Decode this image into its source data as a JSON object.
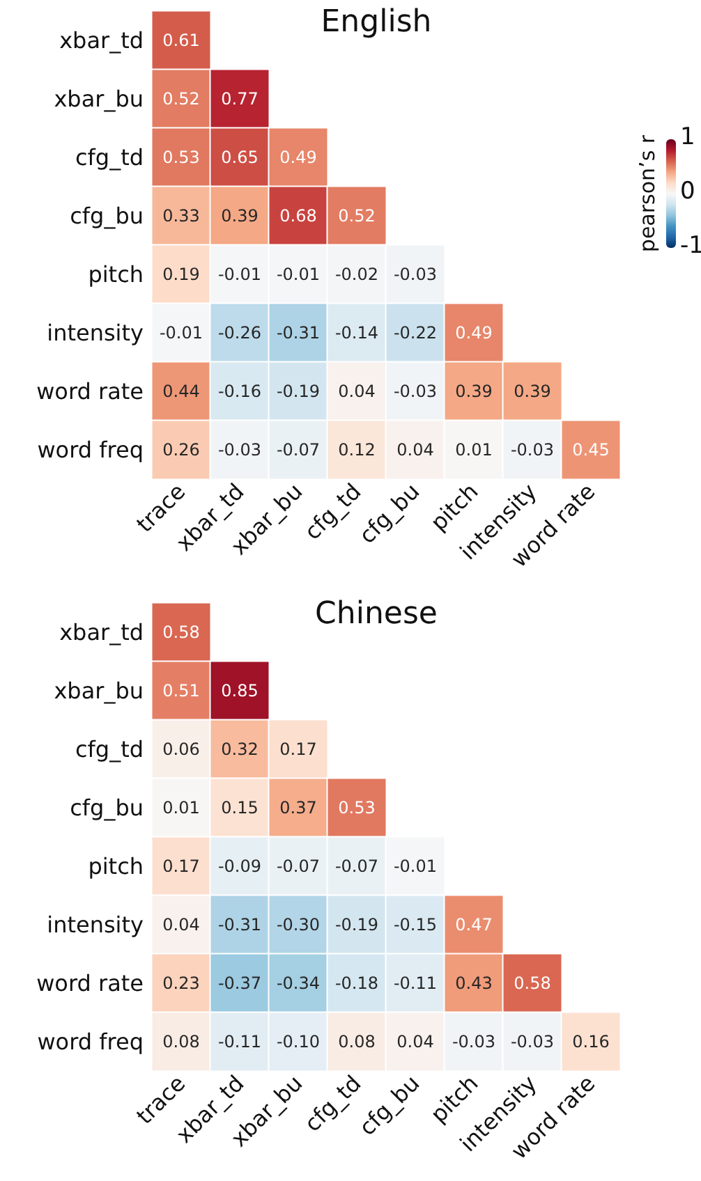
{
  "chart_data": [
    {
      "type": "heatmap",
      "title": "English",
      "categories": [
        "trace",
        "xbar_td",
        "xbar_bu",
        "cfg_td",
        "cfg_bu",
        "pitch",
        "intensity",
        "word rate"
      ],
      "y_categories": [
        "xbar_td",
        "xbar_bu",
        "cfg_td",
        "cfg_bu",
        "pitch",
        "intensity",
        "word rate",
        "word freq"
      ],
      "cells": [
        [
          0.61,
          null,
          null,
          null,
          null,
          null,
          null,
          null
        ],
        [
          0.52,
          0.77,
          null,
          null,
          null,
          null,
          null,
          null
        ],
        [
          0.53,
          0.65,
          0.49,
          null,
          null,
          null,
          null,
          null
        ],
        [
          0.33,
          0.39,
          0.68,
          0.52,
          null,
          null,
          null,
          null
        ],
        [
          0.19,
          -0.01,
          -0.01,
          -0.02,
          -0.03,
          null,
          null,
          null
        ],
        [
          -0.01,
          -0.26,
          -0.31,
          -0.14,
          -0.22,
          0.49,
          null,
          null
        ],
        [
          0.44,
          -0.16,
          -0.19,
          0.04,
          -0.03,
          0.39,
          0.39,
          null
        ],
        [
          0.26,
          -0.03,
          -0.07,
          0.12,
          0.04,
          0.01,
          -0.03,
          0.45
        ]
      ],
      "cell_labels": [
        [
          "0.61",
          null,
          null,
          null,
          null,
          null,
          null,
          null
        ],
        [
          "0.52",
          "0.77",
          null,
          null,
          null,
          null,
          null,
          null
        ],
        [
          "0.53",
          "0.65",
          "0.49",
          null,
          null,
          null,
          null,
          null
        ],
        [
          "0.33",
          "0.39",
          "0.68",
          "0.52",
          null,
          null,
          null,
          null
        ],
        [
          "0.19",
          "-0.01",
          "-0.01",
          "-0.02",
          "-0.03",
          null,
          null,
          null
        ],
        [
          "-0.01",
          "-0.26",
          "-0.31",
          "-0.14",
          "-0.22",
          "0.49",
          null,
          null
        ],
        [
          "0.44",
          "-0.16",
          "-0.19",
          "0.04",
          "-0.03",
          "0.39",
          "0.39",
          null
        ],
        [
          "0.26",
          "-0.03",
          "-0.07",
          "0.12",
          "0.04",
          "0.01",
          "-0.03",
          "0.45"
        ]
      ],
      "clabel": "pearson’s r",
      "clim": [
        -1,
        1
      ],
      "cticks": [
        -1,
        0,
        1
      ]
    },
    {
      "type": "heatmap",
      "title": "Chinese",
      "categories": [
        "trace",
        "xbar_td",
        "xbar_bu",
        "cfg_td",
        "cfg_bu",
        "pitch",
        "intensity",
        "word rate"
      ],
      "y_categories": [
        "xbar_td",
        "xbar_bu",
        "cfg_td",
        "cfg_bu",
        "pitch",
        "intensity",
        "word rate",
        "word freq"
      ],
      "cells": [
        [
          0.58,
          null,
          null,
          null,
          null,
          null,
          null,
          null
        ],
        [
          0.51,
          0.85,
          null,
          null,
          null,
          null,
          null,
          null
        ],
        [
          0.06,
          0.32,
          0.17,
          null,
          null,
          null,
          null,
          null
        ],
        [
          0.01,
          0.15,
          0.37,
          0.53,
          null,
          null,
          null,
          null
        ],
        [
          0.17,
          -0.09,
          -0.07,
          -0.07,
          -0.01,
          null,
          null,
          null
        ],
        [
          0.04,
          -0.31,
          -0.3,
          -0.19,
          -0.15,
          0.47,
          null,
          null
        ],
        [
          0.23,
          -0.37,
          -0.34,
          -0.18,
          -0.11,
          0.43,
          0.58,
          null
        ],
        [
          0.08,
          -0.11,
          -0.1,
          0.08,
          0.04,
          -0.03,
          -0.03,
          0.16
        ]
      ],
      "cell_labels": [
        [
          "0.58",
          null,
          null,
          null,
          null,
          null,
          null,
          null
        ],
        [
          "0.51",
          "0.85",
          null,
          null,
          null,
          null,
          null,
          null
        ],
        [
          "0.06",
          "0.32",
          "0.17",
          null,
          null,
          null,
          null,
          null
        ],
        [
          "0.01",
          "0.15",
          "0.37",
          "0.53",
          null,
          null,
          null,
          null
        ],
        [
          "0.17",
          "-0.09",
          "-0.07",
          "-0.07",
          "-0.01",
          null,
          null,
          null
        ],
        [
          "0.04",
          "-0.31",
          "-0.30",
          "-0.19",
          "-0.15",
          "0.47",
          null,
          null
        ],
        [
          "0.23",
          "-0.37",
          "-0.34",
          "-0.18",
          "-0.11",
          "0.43",
          "0.58",
          null
        ],
        [
          "0.08",
          "-0.11",
          "-0.10",
          "0.08",
          "0.04",
          "-0.03",
          "-0.03",
          "0.16"
        ]
      ]
    }
  ]
}
